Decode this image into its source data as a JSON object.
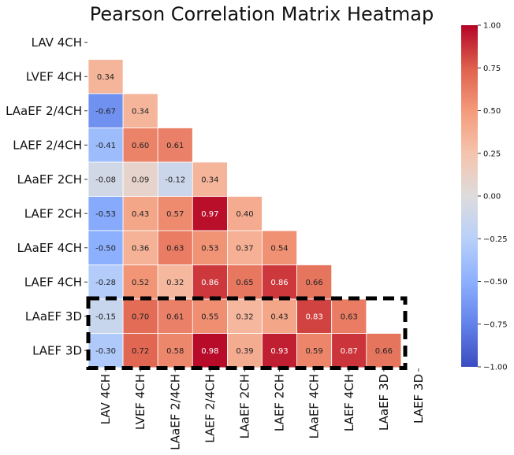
{
  "chart_data": {
    "type": "heatmap",
    "title": "Pearson Correlation Matrix Heatmap",
    "colormap": "coolwarm",
    "vmin": -1.0,
    "vmax": 1.0,
    "labels": [
      "LAV 4CH",
      "LVEF 4CH",
      "LAaEF 2/4CH",
      "LAEF 2/4CH",
      "LAaEF 2CH",
      "LAEF 2CH",
      "LAaEF 4CH",
      "LAEF 4CH",
      "LAaEF 3D",
      "LAEF 3D"
    ],
    "lower_triangle": [
      [],
      [
        0.34
      ],
      [
        -0.67,
        0.34
      ],
      [
        -0.41,
        0.6,
        0.61
      ],
      [
        -0.08,
        0.09,
        -0.12,
        0.34
      ],
      [
        -0.53,
        0.43,
        0.57,
        0.97,
        0.4
      ],
      [
        -0.5,
        0.36,
        0.63,
        0.53,
        0.37,
        0.54
      ],
      [
        -0.28,
        0.52,
        0.32,
        0.86,
        0.65,
        0.86,
        0.66
      ],
      [
        -0.15,
        0.7,
        0.61,
        0.55,
        0.32,
        0.43,
        0.83,
        0.63
      ],
      [
        -0.3,
        0.72,
        0.58,
        0.98,
        0.39,
        0.93,
        0.59,
        0.87,
        0.66
      ]
    ],
    "colorbar_ticks": [
      "1.00",
      "0.75",
      "0.50",
      "0.25",
      "0.00",
      "−0.25",
      "−0.50",
      "−0.75",
      "−1.00"
    ],
    "highlight": {
      "rows": [
        "LAaEF 3D",
        "LAEF 3D"
      ],
      "style": "dashed black box"
    }
  }
}
